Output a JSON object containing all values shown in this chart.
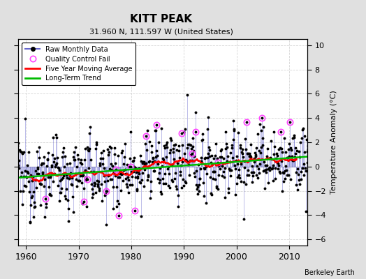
{
  "title": "KITT PEAK",
  "subtitle": "31.960 N, 111.597 W (United States)",
  "ylabel": "Temperature Anomaly (°C)",
  "attribution": "Berkeley Earth",
  "year_start": 1958,
  "year_end": 2014,
  "ylim": [
    -6.5,
    10.5
  ],
  "yticks": [
    -6,
    -4,
    -2,
    0,
    2,
    4,
    6,
    8,
    10
  ],
  "xticks": [
    1960,
    1970,
    1980,
    1990,
    2000,
    2010
  ],
  "bg_color": "#e0e0e0",
  "plot_bg": "#ffffff",
  "line_color": "#6666cc",
  "marker_color": "#000000",
  "qc_color": "#ff44ff",
  "moving_avg_color": "#ff0000",
  "trend_color": "#00bb00",
  "seed": 12345
}
